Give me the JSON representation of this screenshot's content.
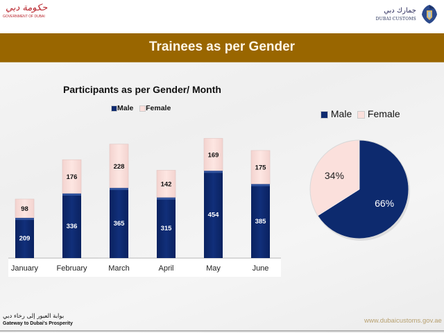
{
  "header": {
    "left_logo_arabic": "حكومة دبي",
    "left_logo_english": "GOVERNMENT OF DUBAI",
    "right_logo_arabic": "جمارك دبي",
    "right_logo_english": "DUBAI CUSTOMS",
    "slide_title": "Trainees as per Gender"
  },
  "colors": {
    "title_bar": "#996600",
    "male": "#0d2a6e",
    "female": "#fbe0dc"
  },
  "chart_data": [
    {
      "type": "bar",
      "stacked": true,
      "title": "Participants as per Gender/ Month",
      "categories": [
        "January",
        "February",
        "March",
        "April",
        "May",
        "June"
      ],
      "series": [
        {
          "name": "Male",
          "values": [
            209,
            336,
            365,
            315,
            454,
            385
          ]
        },
        {
          "name": "Female",
          "values": [
            98,
            176,
            228,
            142,
            169,
            175
          ]
        }
      ],
      "legend": [
        "Male",
        "Female"
      ],
      "legend_position": "top",
      "xlabel": "",
      "ylabel": "",
      "ylim": [
        0,
        650
      ],
      "grid": false
    },
    {
      "type": "pie",
      "title": "",
      "labels": [
        "Male",
        "Female"
      ],
      "values": [
        66,
        34
      ],
      "data_labels": [
        "66%",
        "34%"
      ],
      "legend": [
        "Male",
        "Female"
      ],
      "legend_position": "top"
    }
  ],
  "footer": {
    "tagline_arabic": "بوابة العبور إلى رخاء دبي",
    "tagline_english": "Gateway to Dubai's Prosperity",
    "website": "www.dubaicustoms.gov.ae"
  }
}
